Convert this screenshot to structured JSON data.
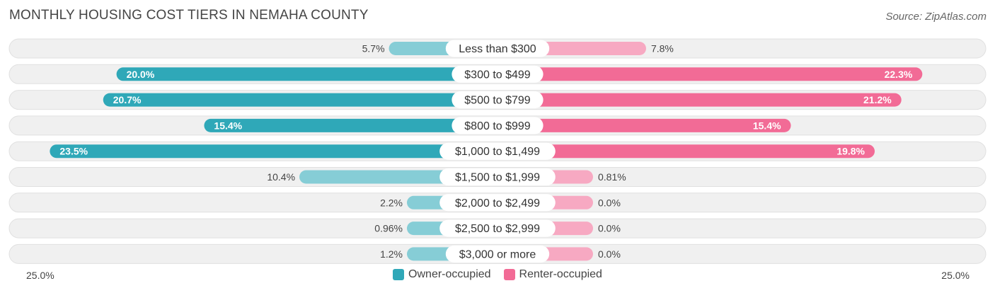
{
  "title": "MONTHLY HOUSING COST TIERS IN NEMAHA COUNTY",
  "source": "Source: ZipAtlas.com",
  "colors": {
    "owner_strong": "#2fa8b8",
    "owner_light": "#86cdd6",
    "renter_strong": "#f26b96",
    "renter_light": "#f7a9c2",
    "row_bg": "#f0f0f0",
    "row_border": "#e0e0e0"
  },
  "chart_data": {
    "type": "bar",
    "orientation": "horizontal-diverging",
    "title": "MONTHLY HOUSING COST TIERS IN NEMAHA COUNTY",
    "categories": [
      "Less than $300",
      "$300 to $499",
      "$500 to $799",
      "$800 to $999",
      "$1,000 to $1,499",
      "$1,500 to $1,999",
      "$2,000 to $2,499",
      "$2,500 to $2,999",
      "$3,000 or more"
    ],
    "series": [
      {
        "name": "Owner-occupied",
        "values": [
          5.7,
          20.0,
          20.7,
          15.4,
          23.5,
          10.4,
          2.2,
          0.96,
          1.2
        ],
        "labels": [
          "5.7%",
          "20.0%",
          "20.7%",
          "15.4%",
          "23.5%",
          "10.4%",
          "2.2%",
          "0.96%",
          "1.2%"
        ]
      },
      {
        "name": "Renter-occupied",
        "values": [
          7.8,
          22.3,
          21.2,
          15.4,
          19.8,
          0.81,
          0.0,
          0.0,
          0.0
        ],
        "labels": [
          "7.8%",
          "22.3%",
          "21.2%",
          "15.4%",
          "19.8%",
          "0.81%",
          "0.0%",
          "0.0%",
          "0.0%"
        ]
      }
    ],
    "axis_range": [
      25.0,
      25.0
    ],
    "axis_labels": {
      "left": "25.0%",
      "right": "25.0%"
    },
    "legend": [
      "Owner-occupied",
      "Renter-occupied"
    ],
    "legend_position": "bottom-center"
  }
}
